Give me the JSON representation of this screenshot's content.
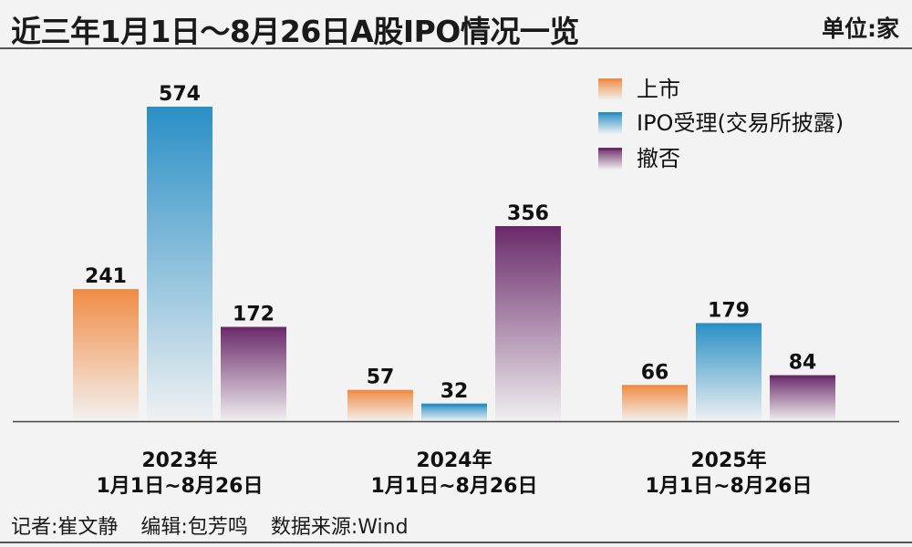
{
  "title": "近三年1月1日～8月26日A股IPO情况一览",
  "unit": "单位:家",
  "footer": {
    "reporter": "记者:崔文静",
    "editor": "编辑:包芳鸣",
    "source": "数据来源:Wind"
  },
  "colors": {
    "listing": "#f08c45",
    "ipo_accepted": "#2a8fc6",
    "withdrawn": "#6a2a6a"
  },
  "chart_data": {
    "type": "bar",
    "categories": [
      [
        "2023年",
        "1月1日~8月26日"
      ],
      [
        "2024年",
        "1月1日~8月26日"
      ],
      [
        "2025年",
        "1月1日~8月26日"
      ]
    ],
    "series": [
      {
        "name": "上市",
        "key": "listing",
        "values": [
          241,
          57,
          66
        ]
      },
      {
        "name": "IPO受理(交易所披露)",
        "key": "ipo_accepted",
        "values": [
          574,
          32,
          179
        ]
      },
      {
        "name": "撤否",
        "key": "withdrawn",
        "values": [
          172,
          356,
          84
        ]
      }
    ],
    "ylim": [
      0,
      600
    ],
    "grid": false,
    "legend_position": "top-right"
  }
}
